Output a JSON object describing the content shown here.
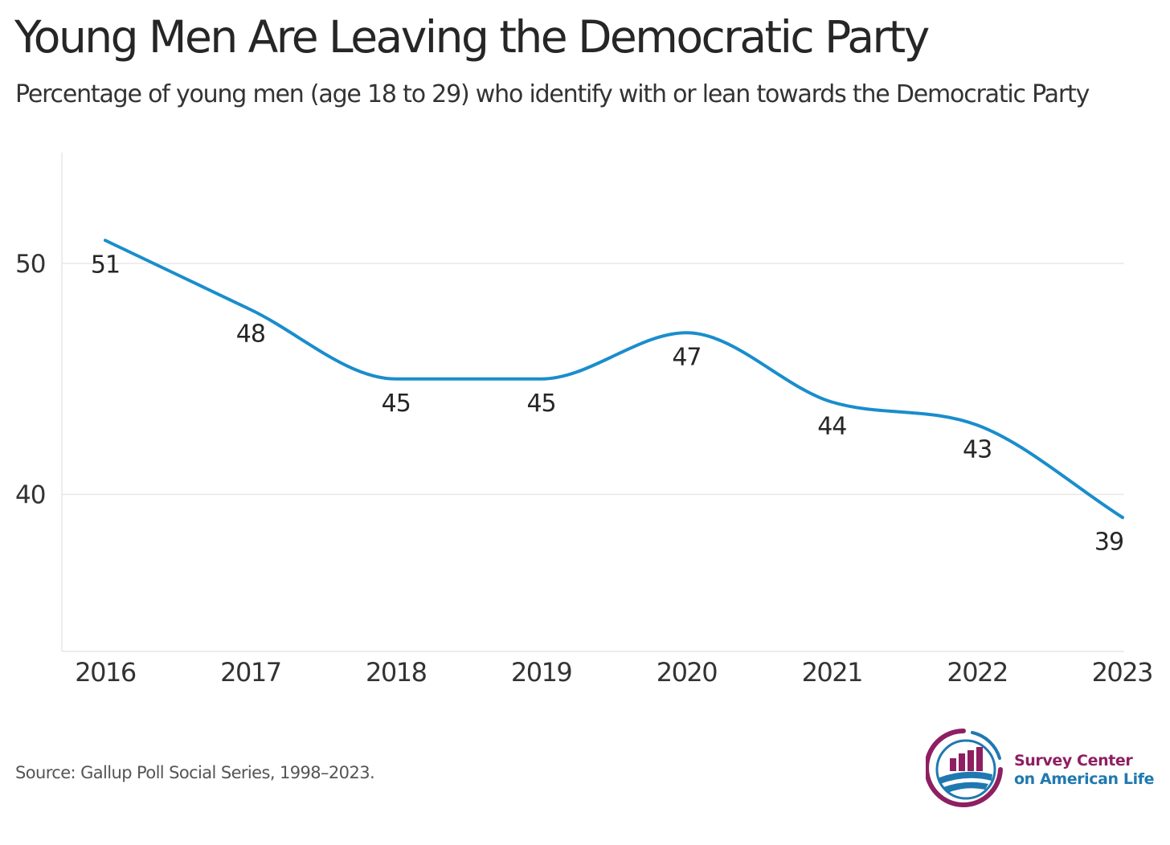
{
  "title": "Young Men Are Leaving the Democratic Party",
  "subtitle": "Percentage of young men (age 18 to 29) who identify with or lean towards the Democratic Party",
  "source": "Source: Gallup Poll Social Series, 1998–2023.",
  "logo": {
    "line1": "Survey Center",
    "line2": "on American Life",
    "colors": {
      "magenta": "#8e1f62",
      "blue": "#1f79b0"
    }
  },
  "chart_data": {
    "type": "line",
    "title": "Young Men Are Leaving the Democratic Party",
    "subtitle": "Percentage of young men (age 18 to 29) who identify with or lean towards the Democratic Party",
    "xlabel": "",
    "ylabel": "",
    "x": [
      "2016",
      "2017",
      "2018",
      "2019",
      "2020",
      "2021",
      "2022",
      "2023"
    ],
    "series": [
      {
        "values": [
          51,
          48,
          45,
          45,
          47,
          44,
          43,
          39
        ],
        "color": "#1a8dcc"
      }
    ],
    "data_labels": [
      "51",
      "48",
      "45",
      "45",
      "47",
      "44",
      "43",
      "39"
    ],
    "yticks": [
      40,
      50
    ],
    "ylim": [
      33.2,
      54.8
    ],
    "grid": "horizontal",
    "smooth": true,
    "legend": "none"
  }
}
